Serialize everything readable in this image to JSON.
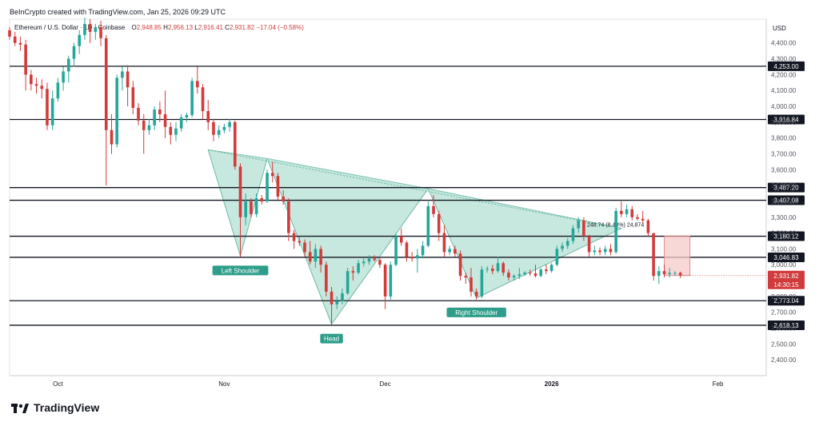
{
  "header": {
    "credit": "BeInCrypto created with TradingView.com, Jan 25, 2026 09:29 UTC"
  },
  "legend": {
    "symbol": "Ethereum / U.S. Dollar · 1D · Coinbase",
    "open_label": "O",
    "open": "2,948.85",
    "high_label": "H",
    "high": "2,956.13",
    "low_label": "L",
    "low": "2,916.41",
    "close_label": "C",
    "close": "2,931.82",
    "change": "−17.04 (−0.58%)"
  },
  "brand": {
    "name": "TradingView",
    "icon": "tradingview-logo-icon"
  },
  "colors": {
    "up": "#26a69a",
    "down": "#d13b3b",
    "pattern_fill": "#b9e2d6",
    "pattern_stroke": "#6fb8a6",
    "line": "#131722",
    "range_fill": "#f6c9c9"
  },
  "chart_data": {
    "type": "candlestick",
    "currency_label": "USD",
    "ylim": [
      2300,
      4550
    ],
    "y_ticks": [
      2400,
      2500,
      2600,
      2700,
      2800,
      2900,
      3000,
      3100,
      3200,
      3300,
      3400,
      3500,
      3600,
      3700,
      3800,
      3900,
      4000,
      4100,
      4200,
      4300,
      4400
    ],
    "y_tick_labels": [
      "2,400.00",
      "2,500.00",
      "2,600.00",
      "2,700.00",
      "2,800.00",
      "2,900.00",
      "3,000.00",
      "3,100.00",
      "3,200.00",
      "3,300.00",
      "3,400.00",
      "3,500.00",
      "3,600.00",
      "3,700.00",
      "3,800.00",
      "3,900.00",
      "4,000.00",
      "4,100.00",
      "4,200.00",
      "4,300.00",
      "4,400.00"
    ],
    "x_range": [
      "2025-09-22",
      "2026-02-10"
    ],
    "x_labels": [
      {
        "date": "2025-10-01",
        "text": "Oct",
        "bold": false
      },
      {
        "date": "2025-11-01",
        "text": "Nov",
        "bold": false
      },
      {
        "date": "2025-12-01",
        "text": "Dec",
        "bold": false
      },
      {
        "date": "2026-01-01",
        "text": "2026",
        "bold": true
      },
      {
        "date": "2026-02-01",
        "text": "Feb",
        "bold": false
      }
    ],
    "levels": [
      {
        "value": 4253.0,
        "label": "4,253.00"
      },
      {
        "value": 3916.84,
        "label": "3,916.84"
      },
      {
        "value": 3487.2,
        "label": "3,487.20"
      },
      {
        "value": 3407.08,
        "label": "3,407.08"
      },
      {
        "value": 3180.12,
        "label": "3,180.12"
      },
      {
        "value": 3046.83,
        "label": "3,046.83"
      },
      {
        "value": 2773.04,
        "label": "2,773.04"
      },
      {
        "value": 2618.13,
        "label": "2,618.13"
      }
    ],
    "last_price": {
      "value": 2931.82,
      "label": "2,931.82",
      "countdown": "14:30:15"
    },
    "pattern": {
      "points": [
        {
          "date": "2025-10-29",
          "price": 3725
        },
        {
          "date": "2025-11-04",
          "price": 3055
        },
        {
          "date": "2025-11-09",
          "price": 3670
        },
        {
          "date": "2025-11-21",
          "price": 2625
        },
        {
          "date": "2025-12-09",
          "price": 3480
        },
        {
          "date": "2025-12-18",
          "price": 2790
        },
        {
          "date": "2026-01-14",
          "price": 3230
        }
      ],
      "labels": [
        {
          "date": "2025-11-04",
          "price": 3055,
          "text": "Left Shoulder"
        },
        {
          "date": "2025-11-21",
          "price": 2625,
          "text": "Head"
        },
        {
          "date": "2025-12-18",
          "price": 2790,
          "text": "Right Shoulder"
        }
      ]
    },
    "measure": {
      "from_date": "2026-01-22",
      "to_date": "2026-01-25",
      "top": 3180,
      "bottom": 2932,
      "label": "248.74 (8.48%) 24,874"
    },
    "candles": [
      {
        "d": "2025-09-22",
        "o": 4480,
        "h": 4500,
        "l": 4420,
        "c": 4440
      },
      {
        "d": "2025-09-23",
        "o": 4440,
        "h": 4470,
        "l": 4380,
        "c": 4400
      },
      {
        "d": "2025-09-24",
        "o": 4400,
        "h": 4440,
        "l": 4350,
        "c": 4390
      },
      {
        "d": "2025-09-25",
        "o": 4390,
        "h": 4420,
        "l": 4100,
        "c": 4200
      },
      {
        "d": "2025-09-26",
        "o": 4200,
        "h": 4230,
        "l": 4100,
        "c": 4140
      },
      {
        "d": "2025-09-27",
        "o": 4140,
        "h": 4180,
        "l": 4080,
        "c": 4130
      },
      {
        "d": "2025-09-28",
        "o": 4130,
        "h": 4170,
        "l": 4050,
        "c": 4110
      },
      {
        "d": "2025-09-29",
        "o": 4110,
        "h": 4150,
        "l": 3850,
        "c": 3880
      },
      {
        "d": "2025-09-30",
        "o": 3880,
        "h": 4100,
        "l": 3850,
        "c": 4050
      },
      {
        "d": "2025-10-01",
        "o": 4050,
        "h": 4180,
        "l": 4030,
        "c": 4150
      },
      {
        "d": "2025-10-02",
        "o": 4150,
        "h": 4250,
        "l": 4100,
        "c": 4220
      },
      {
        "d": "2025-10-03",
        "o": 4220,
        "h": 4320,
        "l": 4150,
        "c": 4300
      },
      {
        "d": "2025-10-04",
        "o": 4300,
        "h": 4400,
        "l": 4250,
        "c": 4380
      },
      {
        "d": "2025-10-05",
        "o": 4380,
        "h": 4480,
        "l": 4330,
        "c": 4450
      },
      {
        "d": "2025-10-06",
        "o": 4450,
        "h": 4560,
        "l": 4420,
        "c": 4520
      },
      {
        "d": "2025-10-07",
        "o": 4520,
        "h": 4550,
        "l": 4400,
        "c": 4470
      },
      {
        "d": "2025-10-08",
        "o": 4470,
        "h": 4520,
        "l": 4420,
        "c": 4500
      },
      {
        "d": "2025-10-09",
        "o": 4500,
        "h": 4540,
        "l": 4380,
        "c": 4430
      },
      {
        "d": "2025-10-10",
        "o": 4430,
        "h": 4450,
        "l": 3500,
        "c": 3850
      },
      {
        "d": "2025-10-11",
        "o": 3850,
        "h": 3950,
        "l": 3700,
        "c": 3760
      },
      {
        "d": "2025-10-12",
        "o": 3760,
        "h": 4200,
        "l": 3740,
        "c": 4180
      },
      {
        "d": "2025-10-13",
        "o": 4180,
        "h": 4250,
        "l": 4100,
        "c": 4220
      },
      {
        "d": "2025-10-14",
        "o": 4220,
        "h": 4260,
        "l": 4000,
        "c": 4120
      },
      {
        "d": "2025-10-15",
        "o": 4120,
        "h": 4160,
        "l": 3950,
        "c": 3990
      },
      {
        "d": "2025-10-16",
        "o": 3990,
        "h": 4020,
        "l": 3880,
        "c": 3910
      },
      {
        "d": "2025-10-17",
        "o": 3910,
        "h": 3950,
        "l": 3700,
        "c": 3850
      },
      {
        "d": "2025-10-18",
        "o": 3850,
        "h": 3920,
        "l": 3820,
        "c": 3880
      },
      {
        "d": "2025-10-19",
        "o": 3880,
        "h": 4000,
        "l": 3850,
        "c": 3980
      },
      {
        "d": "2025-10-20",
        "o": 3980,
        "h": 4030,
        "l": 3900,
        "c": 3950
      },
      {
        "d": "2025-10-21",
        "o": 3950,
        "h": 4100,
        "l": 3800,
        "c": 3870
      },
      {
        "d": "2025-10-22",
        "o": 3870,
        "h": 3900,
        "l": 3760,
        "c": 3820
      },
      {
        "d": "2025-10-23",
        "o": 3820,
        "h": 3900,
        "l": 3780,
        "c": 3860
      },
      {
        "d": "2025-10-24",
        "o": 3860,
        "h": 3950,
        "l": 3840,
        "c": 3930
      },
      {
        "d": "2025-10-25",
        "o": 3930,
        "h": 3960,
        "l": 3900,
        "c": 3945
      },
      {
        "d": "2025-10-26",
        "o": 3945,
        "h": 4180,
        "l": 3930,
        "c": 4160
      },
      {
        "d": "2025-10-27",
        "o": 4160,
        "h": 4250,
        "l": 4080,
        "c": 4120
      },
      {
        "d": "2025-10-28",
        "o": 4120,
        "h": 4140,
        "l": 3920,
        "c": 3970
      },
      {
        "d": "2025-10-29",
        "o": 3970,
        "h": 4040,
        "l": 3850,
        "c": 3900
      },
      {
        "d": "2025-10-30",
        "o": 3900,
        "h": 3920,
        "l": 3780,
        "c": 3820
      },
      {
        "d": "2025-10-31",
        "o": 3820,
        "h": 3880,
        "l": 3800,
        "c": 3850
      },
      {
        "d": "2025-11-01",
        "o": 3850,
        "h": 3890,
        "l": 3830,
        "c": 3870
      },
      {
        "d": "2025-11-02",
        "o": 3870,
        "h": 3920,
        "l": 3840,
        "c": 3900
      },
      {
        "d": "2025-11-03",
        "o": 3900,
        "h": 3910,
        "l": 3600,
        "c": 3620
      },
      {
        "d": "2025-11-04",
        "o": 3620,
        "h": 3640,
        "l": 3050,
        "c": 3300
      },
      {
        "d": "2025-11-05",
        "o": 3300,
        "h": 3450,
        "l": 3250,
        "c": 3400
      },
      {
        "d": "2025-11-06",
        "o": 3400,
        "h": 3420,
        "l": 3300,
        "c": 3320
      },
      {
        "d": "2025-11-07",
        "o": 3320,
        "h": 3450,
        "l": 3300,
        "c": 3420
      },
      {
        "d": "2025-11-08",
        "o": 3420,
        "h": 3440,
        "l": 3380,
        "c": 3400
      },
      {
        "d": "2025-11-09",
        "o": 3400,
        "h": 3600,
        "l": 3390,
        "c": 3580
      },
      {
        "d": "2025-11-10",
        "o": 3580,
        "h": 3650,
        "l": 3520,
        "c": 3560
      },
      {
        "d": "2025-11-11",
        "o": 3560,
        "h": 3580,
        "l": 3400,
        "c": 3430
      },
      {
        "d": "2025-11-12",
        "o": 3430,
        "h": 3470,
        "l": 3380,
        "c": 3400
      },
      {
        "d": "2025-11-13",
        "o": 3400,
        "h": 3420,
        "l": 3150,
        "c": 3200
      },
      {
        "d": "2025-11-14",
        "o": 3200,
        "h": 3220,
        "l": 3100,
        "c": 3150
      },
      {
        "d": "2025-11-15",
        "o": 3150,
        "h": 3180,
        "l": 3120,
        "c": 3140
      },
      {
        "d": "2025-11-16",
        "o": 3140,
        "h": 3160,
        "l": 3050,
        "c": 3080
      },
      {
        "d": "2025-11-17",
        "o": 3080,
        "h": 3150,
        "l": 3000,
        "c": 3020
      },
      {
        "d": "2025-11-18",
        "o": 3020,
        "h": 3130,
        "l": 2980,
        "c": 3100
      },
      {
        "d": "2025-11-19",
        "o": 3100,
        "h": 3120,
        "l": 2950,
        "c": 3000
      },
      {
        "d": "2025-11-20",
        "o": 3000,
        "h": 3020,
        "l": 2800,
        "c": 2830
      },
      {
        "d": "2025-11-21",
        "o": 2830,
        "h": 2860,
        "l": 2625,
        "c": 2750
      },
      {
        "d": "2025-11-22",
        "o": 2750,
        "h": 2800,
        "l": 2720,
        "c": 2770
      },
      {
        "d": "2025-11-23",
        "o": 2770,
        "h": 2850,
        "l": 2750,
        "c": 2820
      },
      {
        "d": "2025-11-24",
        "o": 2820,
        "h": 2980,
        "l": 2810,
        "c": 2960
      },
      {
        "d": "2025-11-25",
        "o": 2960,
        "h": 2990,
        "l": 2900,
        "c": 2950
      },
      {
        "d": "2025-11-26",
        "o": 2950,
        "h": 3030,
        "l": 2940,
        "c": 3010
      },
      {
        "d": "2025-11-27",
        "o": 3010,
        "h": 3040,
        "l": 2990,
        "c": 3020
      },
      {
        "d": "2025-11-28",
        "o": 3020,
        "h": 3060,
        "l": 3000,
        "c": 3040
      },
      {
        "d": "2025-11-29",
        "o": 3040,
        "h": 3060,
        "l": 3020,
        "c": 3030
      },
      {
        "d": "2025-11-30",
        "o": 3030,
        "h": 3050,
        "l": 2980,
        "c": 3000
      },
      {
        "d": "2025-12-01",
        "o": 3000,
        "h": 3010,
        "l": 2720,
        "c": 2800
      },
      {
        "d": "2025-12-02",
        "o": 2800,
        "h": 3020,
        "l": 2780,
        "c": 3000
      },
      {
        "d": "2025-12-03",
        "o": 3000,
        "h": 3200,
        "l": 2990,
        "c": 3180
      },
      {
        "d": "2025-12-04",
        "o": 3180,
        "h": 3230,
        "l": 3120,
        "c": 3140
      },
      {
        "d": "2025-12-05",
        "o": 3140,
        "h": 3150,
        "l": 3020,
        "c": 3050
      },
      {
        "d": "2025-12-06",
        "o": 3050,
        "h": 3080,
        "l": 3020,
        "c": 3040
      },
      {
        "d": "2025-12-07",
        "o": 3040,
        "h": 3100,
        "l": 2950,
        "c": 3060
      },
      {
        "d": "2025-12-08",
        "o": 3060,
        "h": 3150,
        "l": 3040,
        "c": 3120
      },
      {
        "d": "2025-12-09",
        "o": 3120,
        "h": 3400,
        "l": 3110,
        "c": 3370
      },
      {
        "d": "2025-12-10",
        "o": 3370,
        "h": 3440,
        "l": 3300,
        "c": 3320
      },
      {
        "d": "2025-12-11",
        "o": 3320,
        "h": 3340,
        "l": 3150,
        "c": 3200
      },
      {
        "d": "2025-12-12",
        "o": 3200,
        "h": 3250,
        "l": 3050,
        "c": 3080
      },
      {
        "d": "2025-12-13",
        "o": 3080,
        "h": 3120,
        "l": 3060,
        "c": 3100
      },
      {
        "d": "2025-12-14",
        "o": 3100,
        "h": 3120,
        "l": 3050,
        "c": 3070
      },
      {
        "d": "2025-12-15",
        "o": 3070,
        "h": 3090,
        "l": 2900,
        "c": 2930
      },
      {
        "d": "2025-12-16",
        "o": 2930,
        "h": 2950,
        "l": 2880,
        "c": 2920
      },
      {
        "d": "2025-12-17",
        "o": 2920,
        "h": 2980,
        "l": 2800,
        "c": 2830
      },
      {
        "d": "2025-12-18",
        "o": 2830,
        "h": 2850,
        "l": 2780,
        "c": 2800
      },
      {
        "d": "2025-12-19",
        "o": 2800,
        "h": 2990,
        "l": 2790,
        "c": 2970
      },
      {
        "d": "2025-12-20",
        "o": 2970,
        "h": 2990,
        "l": 2950,
        "c": 2975
      },
      {
        "d": "2025-12-21",
        "o": 2975,
        "h": 3000,
        "l": 2940,
        "c": 2960
      },
      {
        "d": "2025-12-22",
        "o": 2960,
        "h": 3050,
        "l": 2950,
        "c": 3010
      },
      {
        "d": "2025-12-23",
        "o": 3010,
        "h": 3020,
        "l": 2930,
        "c": 2950
      },
      {
        "d": "2025-12-24",
        "o": 2950,
        "h": 2970,
        "l": 2900,
        "c": 2920
      },
      {
        "d": "2025-12-25",
        "o": 2920,
        "h": 2940,
        "l": 2900,
        "c": 2930
      },
      {
        "d": "2025-12-26",
        "o": 2930,
        "h": 2980,
        "l": 2910,
        "c": 2940
      },
      {
        "d": "2025-12-27",
        "o": 2940,
        "h": 2960,
        "l": 2930,
        "c": 2950
      },
      {
        "d": "2025-12-28",
        "o": 2950,
        "h": 2970,
        "l": 2930,
        "c": 2945
      },
      {
        "d": "2025-12-29",
        "o": 2945,
        "h": 3000,
        "l": 2920,
        "c": 2930
      },
      {
        "d": "2025-12-30",
        "o": 2930,
        "h": 2980,
        "l": 2920,
        "c": 2970
      },
      {
        "d": "2025-12-31",
        "o": 2970,
        "h": 3000,
        "l": 2940,
        "c": 2960
      },
      {
        "d": "2026-01-01",
        "o": 2960,
        "h": 3010,
        "l": 2950,
        "c": 3000
      },
      {
        "d": "2026-01-02",
        "o": 3000,
        "h": 3120,
        "l": 2990,
        "c": 3100
      },
      {
        "d": "2026-01-03",
        "o": 3100,
        "h": 3140,
        "l": 3080,
        "c": 3120
      },
      {
        "d": "2026-01-04",
        "o": 3120,
        "h": 3170,
        "l": 3100,
        "c": 3150
      },
      {
        "d": "2026-01-05",
        "o": 3150,
        "h": 3250,
        "l": 3130,
        "c": 3230
      },
      {
        "d": "2026-01-06",
        "o": 3230,
        "h": 3300,
        "l": 3200,
        "c": 3280
      },
      {
        "d": "2026-01-07",
        "o": 3280,
        "h": 3300,
        "l": 3150,
        "c": 3180
      },
      {
        "d": "2026-01-08",
        "o": 3180,
        "h": 3190,
        "l": 3050,
        "c": 3080
      },
      {
        "d": "2026-01-09",
        "o": 3080,
        "h": 3120,
        "l": 3060,
        "c": 3090
      },
      {
        "d": "2026-01-10",
        "o": 3090,
        "h": 3110,
        "l": 3060,
        "c": 3080
      },
      {
        "d": "2026-01-11",
        "o": 3080,
        "h": 3120,
        "l": 3060,
        "c": 3100
      },
      {
        "d": "2026-01-12",
        "o": 3100,
        "h": 3130,
        "l": 3060,
        "c": 3080
      },
      {
        "d": "2026-01-13",
        "o": 3080,
        "h": 3360,
        "l": 3070,
        "c": 3340
      },
      {
        "d": "2026-01-14",
        "o": 3340,
        "h": 3400,
        "l": 3300,
        "c": 3320
      },
      {
        "d": "2026-01-15",
        "o": 3320,
        "h": 3380,
        "l": 3300,
        "c": 3350
      },
      {
        "d": "2026-01-16",
        "o": 3350,
        "h": 3370,
        "l": 3280,
        "c": 3300
      },
      {
        "d": "2026-01-17",
        "o": 3300,
        "h": 3320,
        "l": 3280,
        "c": 3290
      },
      {
        "d": "2026-01-18",
        "o": 3290,
        "h": 3340,
        "l": 3260,
        "c": 3280
      },
      {
        "d": "2026-01-19",
        "o": 3280,
        "h": 3290,
        "l": 3180,
        "c": 3200
      },
      {
        "d": "2026-01-20",
        "o": 3200,
        "h": 3200,
        "l": 2900,
        "c": 2930
      },
      {
        "d": "2026-01-21",
        "o": 2930,
        "h": 2990,
        "l": 2880,
        "c": 2960
      },
      {
        "d": "2026-01-22",
        "o": 2960,
        "h": 3000,
        "l": 2920,
        "c": 2940
      },
      {
        "d": "2026-01-23",
        "o": 2940,
        "h": 2980,
        "l": 2920,
        "c": 2948
      },
      {
        "d": "2026-01-24",
        "o": 2948,
        "h": 2960,
        "l": 2930,
        "c": 2949
      },
      {
        "d": "2026-01-25",
        "o": 2949,
        "h": 2956,
        "l": 2916,
        "c": 2932
      }
    ]
  }
}
